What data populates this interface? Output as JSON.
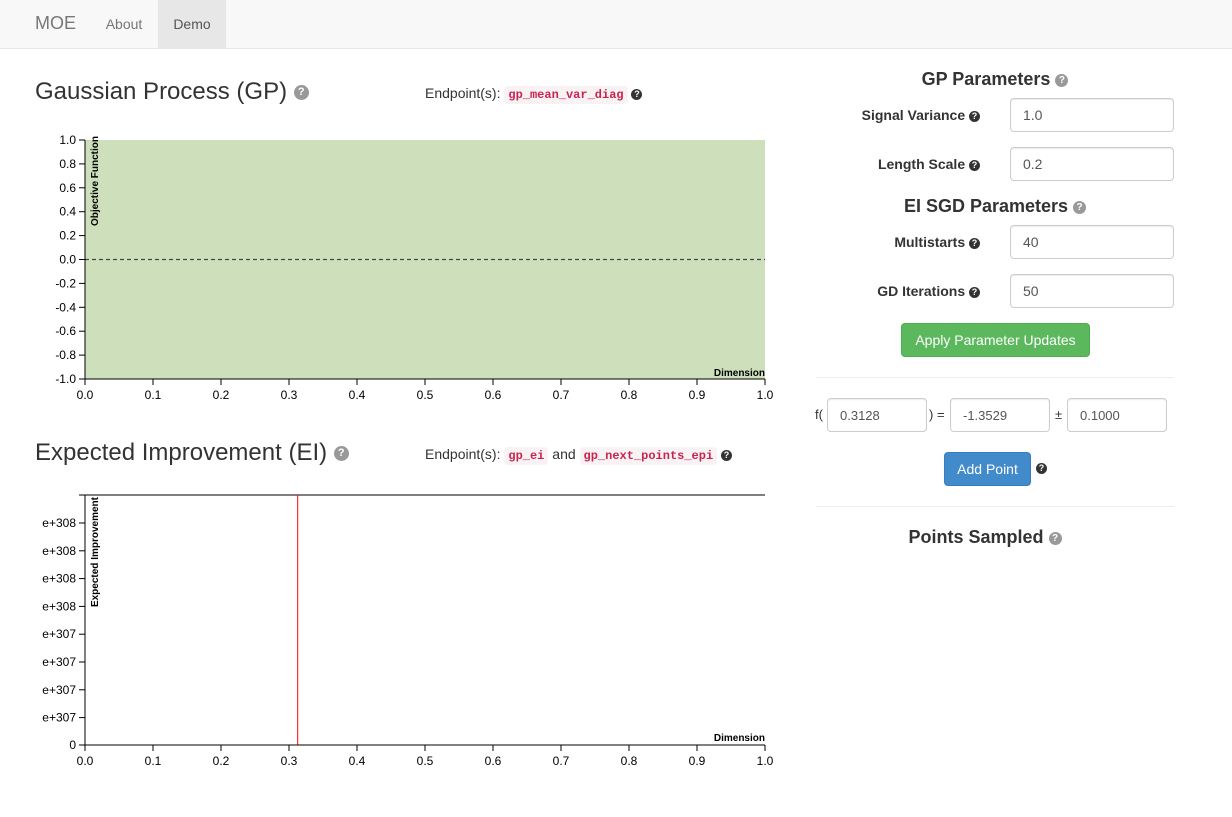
{
  "navbar": {
    "brand": "MOE",
    "links": [
      {
        "label": "About",
        "active": false
      },
      {
        "label": "Demo",
        "active": true
      }
    ]
  },
  "gp_section": {
    "title": "Gaussian Process (GP)",
    "endpoint_label": "Endpoint(s):",
    "endpoint_code": "gp_mean_var_diag"
  },
  "ei_section": {
    "title": "Expected Improvement (EI)",
    "endpoint_label": "Endpoint(s):",
    "endpoint_code_1": "gp_ei",
    "endpoint_joiner": "and",
    "endpoint_code_2": "gp_next_points_epi"
  },
  "gp_params": {
    "title": "GP Parameters",
    "signal_variance_label": "Signal Variance",
    "signal_variance_value": "1.0",
    "length_scale_label": "Length Scale",
    "length_scale_value": "0.2"
  },
  "ei_params": {
    "title": "EI SGD Parameters",
    "multistarts_label": "Multistarts",
    "multistarts_value": "40",
    "gd_iterations_label": "GD Iterations",
    "gd_iterations_value": "50"
  },
  "apply_button_label": "Apply Parameter Updates",
  "point_entry": {
    "f_open": "f(",
    "x_value": "0.3128",
    "equals": ") =",
    "y_value": "-1.3529",
    "plus_minus": "±",
    "noise_value": "0.1000",
    "add_point_label": "Add Point"
  },
  "points_sampled_title": "Points Sampled",
  "help_glyph": "?",
  "colors": {
    "gp_band": "#cddfbb",
    "ei_marker": "#ff0000",
    "btn_success": "#5cb85c",
    "btn_primary": "#428bca",
    "code_text": "#c7254e"
  },
  "chart_data": [
    {
      "type": "area",
      "ylabel": "Objective Function",
      "xlabel": "Dimension",
      "xlim": [
        0.0,
        1.0
      ],
      "ylim": [
        -1.0,
        1.0
      ],
      "x_ticks": [
        "0.0",
        "0.1",
        "0.2",
        "0.3",
        "0.4",
        "0.5",
        "0.6",
        "0.7",
        "0.8",
        "0.9",
        "1.0"
      ],
      "y_ticks": [
        "1.0",
        "0.8",
        "0.6",
        "0.4",
        "0.2",
        "0.0",
        "-0.2",
        "-0.4",
        "-0.6",
        "-0.8",
        "-1.0"
      ],
      "series": [
        {
          "x": [
            0.0,
            1.0
          ],
          "mean": [
            0.0,
            0.0
          ],
          "upper": [
            1.0,
            1.0
          ],
          "lower": [
            -1.0,
            -1.0
          ]
        }
      ]
    },
    {
      "type": "line",
      "ylabel": "Expected Improvement",
      "xlabel": "Dimension",
      "xlim": [
        0.0,
        1.0
      ],
      "x_ticks": [
        "0.0",
        "0.1",
        "0.2",
        "0.3",
        "0.4",
        "0.5",
        "0.6",
        "0.7",
        "0.8",
        "0.9",
        "1.0"
      ],
      "y_ticks": [
        "e+308",
        "e+308",
        "e+308",
        "e+308",
        "e+307",
        "e+307",
        "e+307",
        "e+307",
        "0"
      ],
      "marker_x": 0.3128
    }
  ]
}
